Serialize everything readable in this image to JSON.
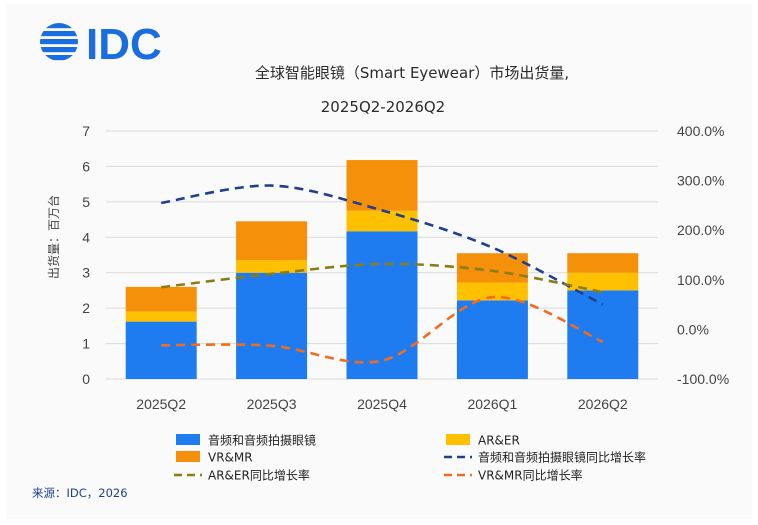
{
  "brand": {
    "logo_text": "IDC",
    "logo_color": "#1a6de0"
  },
  "title_line1": "全球智能眼镜（Smart Eyewear）市场出货量,",
  "title_line2": "2025Q2-2026Q2",
  "source": "来源：IDC，2026",
  "colors": {
    "audio": "#1f7cf0",
    "arer": "#ffc000",
    "vrmr": "#f5900a",
    "audio_yoy": "#1f3f8f",
    "arer_yoy": "#8b7d14",
    "vrmr_yoy": "#f26b21",
    "grid": "#d9d9d9"
  },
  "chart_data": {
    "type": "bar",
    "stacked": true,
    "categories": [
      "2025Q2",
      "2025Q3",
      "2025Q4",
      "2026Q1",
      "2026Q2"
    ],
    "ylabel": "出货量：百万台",
    "ylim": [
      0,
      7
    ],
    "yticks": [
      "0",
      "1",
      "2",
      "3",
      "4",
      "5",
      "6",
      "7"
    ],
    "y2lim": [
      -100,
      400
    ],
    "y2ticks": [
      "-100.0%",
      "0.0%",
      "100.0%",
      "200.0%",
      "300.0%",
      "400.0%"
    ],
    "series": [
      {
        "name": "音频和音频拍摄眼镜",
        "kind": "bar",
        "values": [
          1.62,
          3.0,
          4.17,
          2.22,
          2.5
        ]
      },
      {
        "name": "AR&ER",
        "kind": "bar",
        "values": [
          0.28,
          0.35,
          0.58,
          0.5,
          0.5
        ]
      },
      {
        "name": "VR&MR",
        "kind": "bar",
        "values": [
          0.7,
          1.1,
          1.43,
          0.83,
          0.55
        ]
      },
      {
        "name": "音频和音频拍摄眼镜同比增长率",
        "kind": "line",
        "axis": "right",
        "values": [
          255,
          290,
          240,
          165,
          50
        ]
      },
      {
        "name": "AR&ER同比增长率",
        "kind": "line",
        "axis": "right",
        "values": [
          85,
          112,
          132,
          118,
          75
        ]
      },
      {
        "name": "VR&MR同比增长率",
        "kind": "line",
        "axis": "right",
        "values": [
          -32,
          -33,
          -63,
          65,
          -25
        ]
      }
    ],
    "legend_position": "bottom"
  }
}
